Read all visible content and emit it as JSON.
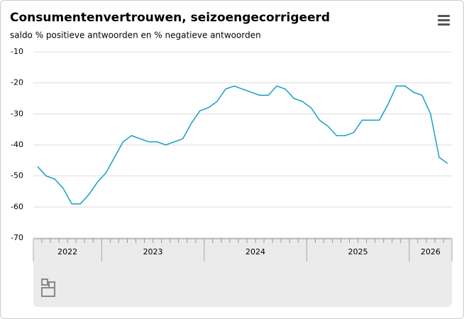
{
  "chart_data": {
    "type": "line",
    "title": "Consumentenvertrouwen, seizoengecorrigeerd",
    "subtitle": "saldo % positieve antwoorden en % negatieve antwoorden",
    "categories": [
      "2022",
      null,
      null,
      null,
      null,
      null,
      null,
      null,
      "2023",
      null,
      null,
      null,
      null,
      null,
      null,
      null,
      null,
      null,
      null,
      null,
      "2024",
      null,
      null,
      null,
      null,
      null,
      null,
      null,
      null,
      null,
      null,
      null,
      "2025",
      null,
      null,
      null,
      null,
      null,
      null,
      null,
      null,
      null,
      null,
      null,
      "2026",
      null,
      null,
      null,
      null
    ],
    "series": [
      {
        "color": "#169fc4",
        "values": [
          -47,
          -50,
          -51,
          -54,
          -59,
          -59,
          -56,
          -52,
          -49,
          -44,
          -39,
          -37,
          -38,
          -39,
          -39,
          -40,
          -39,
          -38,
          -33,
          -29,
          -28,
          -26,
          -22,
          -21,
          -22,
          -23,
          -24,
          -24,
          -21,
          -22,
          -25,
          -26,
          -28,
          -32,
          -34,
          -37,
          -37,
          -36,
          -32,
          -32,
          -32,
          -27,
          -21,
          -21,
          -23,
          -24,
          -30,
          -44,
          -46
        ]
      }
    ],
    "ylim": [
      -70,
      -10
    ],
    "yticks": [
      -70,
      -60,
      -50,
      -40,
      -30,
      -20,
      -10
    ],
    "grid": true
  }
}
